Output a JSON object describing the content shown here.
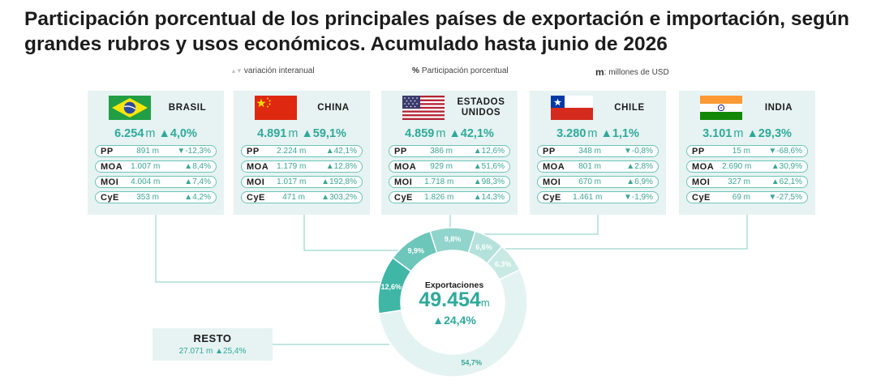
{
  "title": "Participación porcentual de los principales países de exportación e importación, según grandes rubros y usos económicos. Acumulado hasta junio de 2026",
  "legend": {
    "variation_symbol": "▲▼",
    "variation_label": "variación interanual",
    "share_symbol": "%",
    "share_label": "Participación porcentual",
    "millions_symbol": "m",
    "millions_label": ": millones de USD"
  },
  "colors": {
    "accent": "#2fa99a",
    "card_bg": "#e6f3f2",
    "row_border": "#6cc4b8",
    "connector": "#9ed6ce"
  },
  "countries": [
    {
      "name": "BRASIL",
      "flag": "brazil-flag",
      "total": "6.254",
      "unit": "m",
      "change": "▲4,0%",
      "rows": [
        {
          "key": "PP",
          "value": "891 m",
          "change": "▼-12,3%"
        },
        {
          "key": "MOA",
          "value": "1.007 m",
          "change": "▲8,4%"
        },
        {
          "key": "MOI",
          "value": "4.004 m",
          "change": "▲7,4%"
        },
        {
          "key": "CyE",
          "value": "353 m",
          "change": "▲4,2%"
        }
      ]
    },
    {
      "name": "CHINA",
      "flag": "china-flag",
      "total": "4.891",
      "unit": "m",
      "change": "▲59,1%",
      "rows": [
        {
          "key": "PP",
          "value": "2.224 m",
          "change": "▲42,1%"
        },
        {
          "key": "MOA",
          "value": "1.179 m",
          "change": "▲12,8%"
        },
        {
          "key": "MOI",
          "value": "1.017 m",
          "change": "▲192,8%"
        },
        {
          "key": "CyE",
          "value": "471 m",
          "change": "▲303,2%"
        }
      ]
    },
    {
      "name": "ESTADOS UNIDOS",
      "flag": "usa-flag",
      "total": "4.859",
      "unit": "m",
      "change": "▲42,1%",
      "rows": [
        {
          "key": "PP",
          "value": "386 m",
          "change": "▲12,6%"
        },
        {
          "key": "MOA",
          "value": "929 m",
          "change": "▲51,6%"
        },
        {
          "key": "MOI",
          "value": "1.718 m",
          "change": "▲98,3%"
        },
        {
          "key": "CyE",
          "value": "1.826 m",
          "change": "▲14,3%"
        }
      ]
    },
    {
      "name": "CHILE",
      "flag": "chile-flag",
      "total": "3.280",
      "unit": "m",
      "change": "▲1,1%",
      "rows": [
        {
          "key": "PP",
          "value": "348 m",
          "change": "▼-0,8%"
        },
        {
          "key": "MOA",
          "value": "801 m",
          "change": "▲2,8%"
        },
        {
          "key": "MOI",
          "value": "670 m",
          "change": "▲6,9%"
        },
        {
          "key": "CyE",
          "value": "1.461 m",
          "change": "▼-1,9%"
        }
      ]
    },
    {
      "name": "INDIA",
      "flag": "india-flag",
      "total": "3.101",
      "unit": "m",
      "change": "▲29,3%",
      "rows": [
        {
          "key": "PP",
          "value": "15 m",
          "change": "▼-68,6%"
        },
        {
          "key": "MOA",
          "value": "2.690 m",
          "change": "▲30,9%"
        },
        {
          "key": "MOI",
          "value": "327 m",
          "change": "▲62,1%"
        },
        {
          "key": "CyE",
          "value": "69 m",
          "change": "▼-27,5%"
        }
      ]
    }
  ],
  "donut": {
    "label": "Exportaciones",
    "total": "49.454",
    "unit": "m",
    "change": "▲24,4%"
  },
  "resto": {
    "name": "RESTO",
    "value": "27.071 m",
    "change": "▲25,4%"
  },
  "chart_data": {
    "type": "pie",
    "title": "Participación porcentual de los principales países de exportación e importación, según grandes rubros y usos económicos. Acumulado hasta junio de 2026",
    "categories": [
      "BRASIL",
      "CHINA",
      "ESTADOS UNIDOS",
      "CHILE",
      "INDIA",
      "RESTO"
    ],
    "values": [
      12.6,
      9.9,
      9.8,
      6.6,
      6.3,
      54.7
    ],
    "labels": [
      "12,6%",
      "9,9%",
      "9,8%",
      "6,6%",
      "6,3%",
      "54,7%"
    ],
    "slice_colors": [
      "#3fb6a6",
      "#6cc6ba",
      "#90d4cb",
      "#b4e1db",
      "#c8e9e4",
      "#e3f3f1"
    ]
  }
}
